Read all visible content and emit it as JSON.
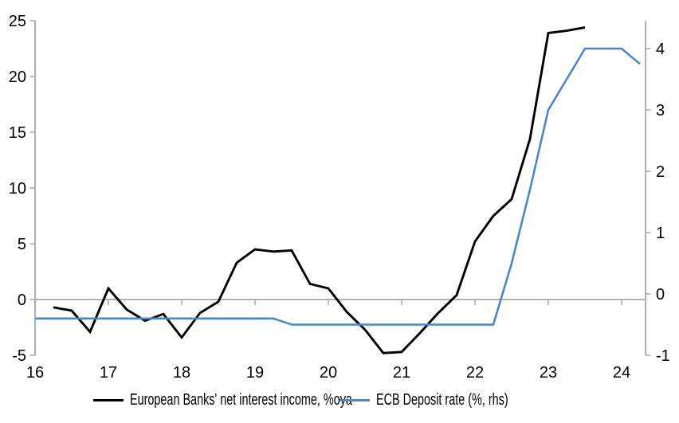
{
  "colors": {
    "axis": "#a7a7a7",
    "text": "#000000",
    "nii_line": "#000000",
    "ecb_line": "#4f86c6",
    "background": "#ffffff"
  },
  "legend": {
    "items": [
      {
        "label": "European Banks' net interest income, %oya",
        "color": "#000000"
      },
      {
        "label": "ECB Deposit rate (%, rhs)",
        "color": "#4f86c6"
      }
    ]
  },
  "chart_data": {
    "type": "line",
    "title": "",
    "grid": false,
    "legend_position": "bottom",
    "x_axis": {
      "ticks": [
        16,
        17,
        18,
        19,
        20,
        21,
        22,
        23,
        24
      ],
      "range": [
        16,
        24.33
      ]
    },
    "left_axis": {
      "ticks": [
        -5,
        0,
        5,
        10,
        15,
        20,
        25
      ],
      "range": [
        -5,
        25
      ],
      "zero_baseline": true
    },
    "right_axis": {
      "ticks": [
        -1,
        0,
        1,
        2,
        3,
        4
      ],
      "range": [
        -1,
        4.45
      ]
    },
    "series": [
      {
        "name": "European Banks' net interest income, %oya",
        "axis": "left",
        "color": "#000000",
        "x": [
          16.25,
          16.5,
          16.75,
          17.0,
          17.25,
          17.5,
          17.75,
          18.0,
          18.25,
          18.5,
          18.75,
          19.0,
          19.25,
          19.5,
          19.75,
          20.0,
          20.25,
          20.5,
          20.75,
          21.0,
          21.25,
          21.5,
          21.75,
          22.0,
          22.25,
          22.5,
          22.75,
          23.0,
          23.25,
          23.5
        ],
        "values": [
          -0.7,
          -1.0,
          -2.9,
          1.0,
          -0.9,
          -1.9,
          -1.3,
          -3.4,
          -1.2,
          -0.2,
          3.3,
          4.5,
          4.3,
          4.4,
          1.4,
          1.0,
          -1.1,
          -2.7,
          -4.8,
          -4.7,
          -3.0,
          -1.2,
          0.4,
          5.2,
          7.5,
          9.0,
          14.4,
          23.9,
          24.1,
          24.4
        ]
      },
      {
        "name": "ECB Deposit rate (%, rhs)",
        "axis": "right",
        "color": "#4f86c6",
        "x": [
          16.0,
          16.25,
          16.5,
          16.75,
          17.0,
          17.25,
          17.5,
          17.75,
          18.0,
          18.25,
          18.5,
          18.75,
          19.0,
          19.25,
          19.5,
          19.75,
          20.0,
          20.25,
          20.5,
          20.75,
          21.0,
          21.25,
          21.5,
          21.75,
          22.0,
          22.25,
          22.5,
          22.75,
          23.0,
          23.25,
          23.5,
          23.75,
          24.0,
          24.25
        ],
        "values": [
          -0.4,
          -0.4,
          -0.4,
          -0.4,
          -0.4,
          -0.4,
          -0.4,
          -0.4,
          -0.4,
          -0.4,
          -0.4,
          -0.4,
          -0.4,
          -0.4,
          -0.5,
          -0.5,
          -0.5,
          -0.5,
          -0.5,
          -0.5,
          -0.5,
          -0.5,
          -0.5,
          -0.5,
          -0.5,
          -0.5,
          0.5,
          1.7,
          3.0,
          3.5,
          4.0,
          4.0,
          4.0,
          3.75
        ]
      }
    ]
  }
}
